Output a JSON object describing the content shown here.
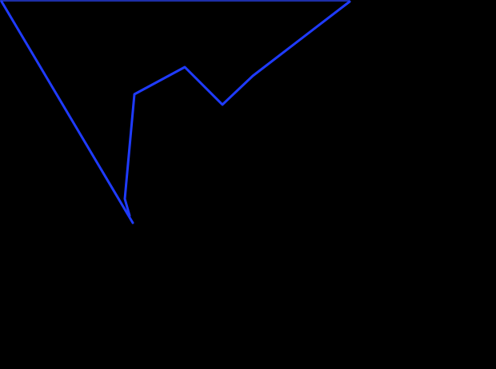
{
  "scene": {
    "background_color": "#000000",
    "stroke_color": "#1f3bff",
    "top_edge_color": "#1d2fa8",
    "description_visible_text": ""
  }
}
